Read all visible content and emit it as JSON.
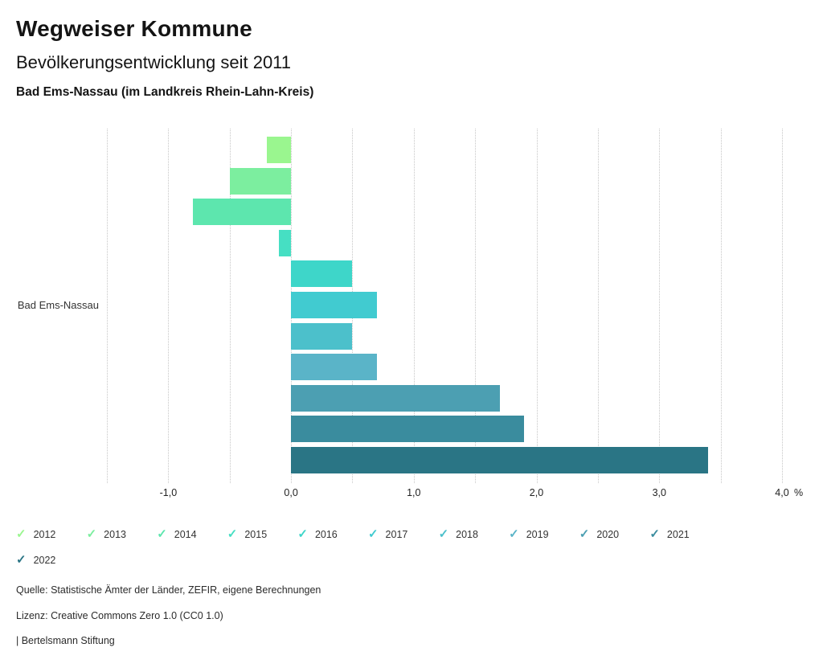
{
  "header": {
    "title": "Wegweiser Kommune",
    "subtitle": "Bevölkerungsentwicklung seit 2011",
    "region_line": "Bad Ems-Nassau (im Landkreis Rhein-Lahn-Kreis)"
  },
  "chart_data": {
    "type": "bar",
    "orientation": "horizontal",
    "title": "Bevölkerungsentwicklung seit 2011",
    "category_label": "Bad Ems-Nassau",
    "unit": "%",
    "xlim": [
      -1.5,
      4.0
    ],
    "gridline_step": 0.5,
    "grid": true,
    "x_ticks": [
      -1.0,
      0.0,
      1.0,
      2.0,
      3.0,
      4.0
    ],
    "x_tick_labels": [
      "-1,0",
      "0,0",
      "1,0",
      "2,0",
      "3,0",
      "4,0"
    ],
    "series": [
      {
        "name": "2012",
        "value": -0.2,
        "color": "#9af68f"
      },
      {
        "name": "2013",
        "value": -0.5,
        "color": "#7cee9f"
      },
      {
        "name": "2014",
        "value": -0.8,
        "color": "#5de6ae"
      },
      {
        "name": "2015",
        "value": -0.1,
        "color": "#46dfc3"
      },
      {
        "name": "2016",
        "value": 0.5,
        "color": "#3ed6c9"
      },
      {
        "name": "2017",
        "value": 0.7,
        "color": "#41cbd0"
      },
      {
        "name": "2018",
        "value": 0.5,
        "color": "#4cc0cb"
      },
      {
        "name": "2019",
        "value": 0.7,
        "color": "#5ab4c8"
      },
      {
        "name": "2020",
        "value": 1.7,
        "color": "#4c9fb2"
      },
      {
        "name": "2021",
        "value": 1.9,
        "color": "#3a8c9e"
      },
      {
        "name": "2022",
        "value": 3.4,
        "color": "#2a7585"
      }
    ],
    "legend_position": "bottom",
    "legend_check_icon": "✓"
  },
  "footer": {
    "source": "Quelle: Statistische Ämter der Länder, ZEFIR, eigene Berechnungen",
    "license": "Lizenz: Creative Commons Zero 1.0 (CC0 1.0)",
    "attribution": "| Bertelsmann Stiftung"
  }
}
